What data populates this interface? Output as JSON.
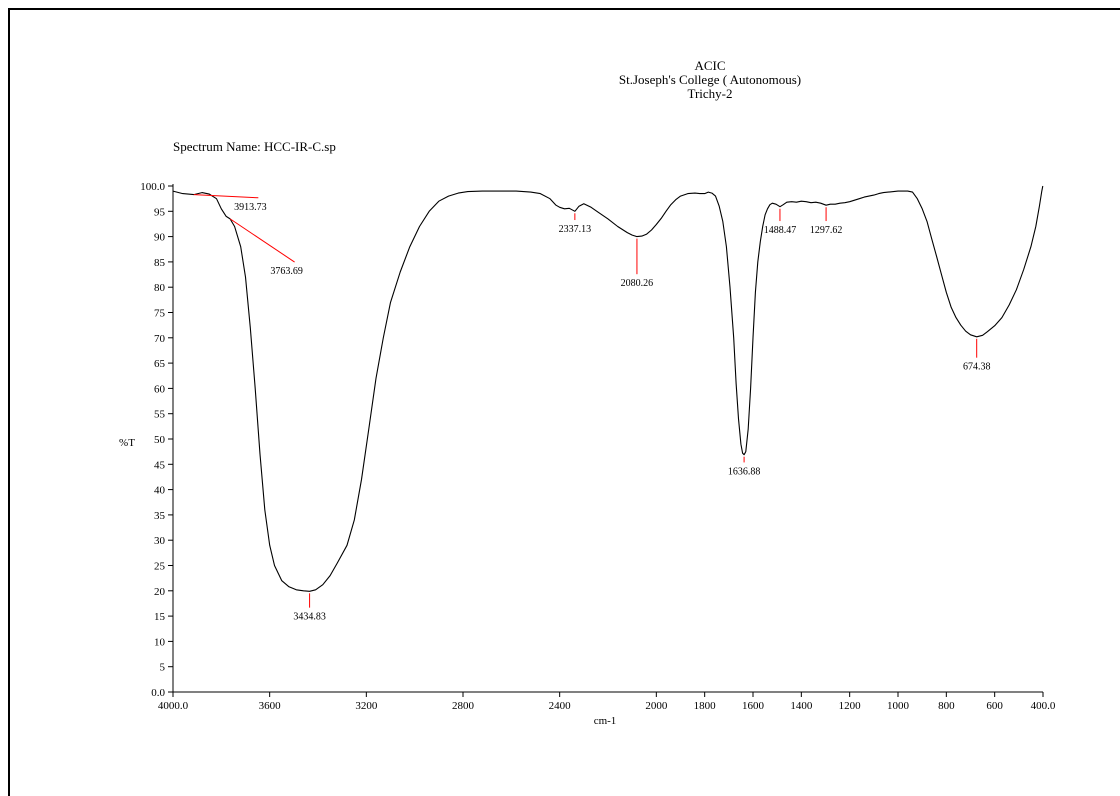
{
  "header": {
    "line1": "ACIC",
    "line2": "St.Joseph's College ( Autonomous)",
    "line3": "Trichy-2"
  },
  "spectrum_name": "Spectrum Name: HCC-IR-C.sp",
  "colors": {
    "trace": "#000000",
    "peak_marker": "#ff0000",
    "axis": "#000000"
  },
  "chart_data": {
    "type": "line",
    "title": "",
    "xlabel": "cm-1",
    "ylabel": "%T",
    "xlim": [
      4000,
      400
    ],
    "ylim": [
      0,
      100
    ],
    "x_reversed": true,
    "grid": false,
    "x_ticks": [
      4000,
      3600,
      3200,
      2800,
      2400,
      2000,
      1800,
      1600,
      1400,
      1200,
      1000,
      800,
      600,
      400
    ],
    "x_tick_labels": [
      "4000.0",
      "3600",
      "3200",
      "2800",
      "2400",
      "2000",
      "1800",
      "1600",
      "1400",
      "1200",
      "1000",
      "800",
      "600",
      "400.0"
    ],
    "y_ticks": [
      0,
      5,
      10,
      15,
      20,
      25,
      30,
      35,
      40,
      45,
      50,
      55,
      60,
      65,
      70,
      75,
      80,
      85,
      90,
      95,
      100
    ],
    "y_tick_labels": [
      "0.0",
      "5",
      "10",
      "15",
      "20",
      "25",
      "30",
      "35",
      "40",
      "45",
      "50",
      "55",
      "60",
      "65",
      "70",
      "75",
      "80",
      "85",
      "90",
      "95",
      "100.0"
    ],
    "series": [
      {
        "points": [
          [
            4000,
            99.0
          ],
          [
            3960,
            98.5
          ],
          [
            3913.73,
            98.3
          ],
          [
            3880,
            98.7
          ],
          [
            3850,
            98.4
          ],
          [
            3820,
            97.5
          ],
          [
            3800,
            95.5
          ],
          [
            3780,
            94.0
          ],
          [
            3763.69,
            93.5
          ],
          [
            3745,
            92.0
          ],
          [
            3720,
            88.0
          ],
          [
            3700,
            82.0
          ],
          [
            3680,
            72.0
          ],
          [
            3660,
            60.0
          ],
          [
            3640,
            47.0
          ],
          [
            3620,
            36.0
          ],
          [
            3600,
            29.0
          ],
          [
            3580,
            25.0
          ],
          [
            3550,
            22.0
          ],
          [
            3520,
            20.8
          ],
          [
            3490,
            20.2
          ],
          [
            3460,
            20.0
          ],
          [
            3434.83,
            19.9
          ],
          [
            3410,
            20.2
          ],
          [
            3380,
            21.2
          ],
          [
            3350,
            23.0
          ],
          [
            3320,
            25.5
          ],
          [
            3280,
            29.0
          ],
          [
            3250,
            34.0
          ],
          [
            3220,
            42.0
          ],
          [
            3190,
            52.0
          ],
          [
            3160,
            62.0
          ],
          [
            3130,
            70.0
          ],
          [
            3100,
            77.0
          ],
          [
            3060,
            83.0
          ],
          [
            3020,
            88.0
          ],
          [
            2980,
            92.0
          ],
          [
            2940,
            95.0
          ],
          [
            2900,
            97.0
          ],
          [
            2860,
            98.0
          ],
          [
            2820,
            98.6
          ],
          [
            2780,
            98.9
          ],
          [
            2720,
            99.0
          ],
          [
            2650,
            99.0
          ],
          [
            2580,
            99.0
          ],
          [
            2520,
            98.8
          ],
          [
            2480,
            98.5
          ],
          [
            2440,
            97.5
          ],
          [
            2415,
            96.2
          ],
          [
            2400,
            95.8
          ],
          [
            2380,
            95.5
          ],
          [
            2360,
            95.6
          ],
          [
            2337.13,
            95.0
          ],
          [
            2320,
            96.0
          ],
          [
            2300,
            96.5
          ],
          [
            2270,
            95.8
          ],
          [
            2240,
            94.8
          ],
          [
            2200,
            93.5
          ],
          [
            2160,
            92.0
          ],
          [
            2120,
            90.8
          ],
          [
            2100,
            90.3
          ],
          [
            2080.26,
            90.0
          ],
          [
            2060,
            90.1
          ],
          [
            2040,
            90.5
          ],
          [
            2020,
            91.3
          ],
          [
            2000,
            92.4
          ],
          [
            1980,
            93.6
          ],
          [
            1960,
            95.0
          ],
          [
            1940,
            96.3
          ],
          [
            1920,
            97.3
          ],
          [
            1900,
            98.0
          ],
          [
            1870,
            98.5
          ],
          [
            1840,
            98.6
          ],
          [
            1820,
            98.5
          ],
          [
            1800,
            98.5
          ],
          [
            1785,
            98.8
          ],
          [
            1770,
            98.6
          ],
          [
            1755,
            98.0
          ],
          [
            1740,
            96.0
          ],
          [
            1725,
            93.0
          ],
          [
            1710,
            88.0
          ],
          [
            1695,
            80.0
          ],
          [
            1680,
            70.0
          ],
          [
            1670,
            61.0
          ],
          [
            1660,
            54.0
          ],
          [
            1650,
            49.0
          ],
          [
            1643,
            47.2
          ],
          [
            1636.88,
            46.9
          ],
          [
            1630,
            47.5
          ],
          [
            1620,
            52.0
          ],
          [
            1610,
            60.0
          ],
          [
            1600,
            70.0
          ],
          [
            1590,
            79.0
          ],
          [
            1580,
            85.0
          ],
          [
            1570,
            89.0
          ],
          [
            1560,
            92.0
          ],
          [
            1550,
            94.3
          ],
          [
            1540,
            95.5
          ],
          [
            1530,
            96.3
          ],
          [
            1520,
            96.6
          ],
          [
            1505,
            96.4
          ],
          [
            1488.47,
            95.9
          ],
          [
            1475,
            96.3
          ],
          [
            1460,
            96.8
          ],
          [
            1440,
            96.9
          ],
          [
            1420,
            96.8
          ],
          [
            1400,
            97.0
          ],
          [
            1380,
            96.9
          ],
          [
            1360,
            96.7
          ],
          [
            1340,
            96.8
          ],
          [
            1320,
            96.6
          ],
          [
            1297.62,
            96.2
          ],
          [
            1280,
            96.4
          ],
          [
            1260,
            96.4
          ],
          [
            1240,
            96.6
          ],
          [
            1220,
            96.7
          ],
          [
            1200,
            96.9
          ],
          [
            1180,
            97.2
          ],
          [
            1160,
            97.5
          ],
          [
            1140,
            97.8
          ],
          [
            1120,
            98.0
          ],
          [
            1100,
            98.2
          ],
          [
            1080,
            98.5
          ],
          [
            1060,
            98.7
          ],
          [
            1040,
            98.8
          ],
          [
            1000,
            99.0
          ],
          [
            960,
            99.0
          ],
          [
            940,
            98.8
          ],
          [
            920,
            97.5
          ],
          [
            900,
            95.5
          ],
          [
            880,
            93.0
          ],
          [
            860,
            89.5
          ],
          [
            840,
            86.0
          ],
          [
            820,
            82.5
          ],
          [
            800,
            79.0
          ],
          [
            780,
            76.0
          ],
          [
            760,
            74.0
          ],
          [
            740,
            72.5
          ],
          [
            720,
            71.3
          ],
          [
            700,
            70.6
          ],
          [
            674.38,
            70.2
          ],
          [
            650,
            70.5
          ],
          [
            630,
            71.2
          ],
          [
            600,
            72.4
          ],
          [
            570,
            74.0
          ],
          [
            540,
            76.5
          ],
          [
            510,
            79.5
          ],
          [
            480,
            83.5
          ],
          [
            450,
            88.0
          ],
          [
            430,
            92.0
          ],
          [
            415,
            96.0
          ],
          [
            405,
            99.0
          ],
          [
            401,
            100.0
          ]
        ]
      }
    ],
    "peaks": [
      {
        "label": "3913.73",
        "x": 3913.73,
        "y": 98.3,
        "label_x": 3680,
        "label_y": 95.3,
        "leader": "angled"
      },
      {
        "label": "3763.69",
        "x": 3763.69,
        "y": 93.5,
        "label_x": 3530,
        "label_y": 82.6,
        "leader": "angled"
      },
      {
        "label": "3434.83",
        "x": 3434.83,
        "y": 19.9,
        "label_x": 3434.83,
        "label_y": 14.3,
        "leader": "vertical"
      },
      {
        "label": "2337.13",
        "x": 2337.13,
        "y": 95.0,
        "label_x": 2337.13,
        "label_y": 90.9,
        "leader": "vertical"
      },
      {
        "label": "2080.26",
        "x": 2080.26,
        "y": 90.0,
        "label_x": 2080.26,
        "label_y": 80.2,
        "leader": "vertical"
      },
      {
        "label": "1636.88",
        "x": 1636.88,
        "y": 46.9,
        "label_x": 1636.88,
        "label_y": 43.0,
        "leader": "vertical"
      },
      {
        "label": "1488.47",
        "x": 1488.47,
        "y": 95.9,
        "label_x": 1488.47,
        "label_y": 90.7,
        "leader": "vertical"
      },
      {
        "label": "1297.62",
        "x": 1297.62,
        "y": 96.2,
        "label_x": 1297.62,
        "label_y": 90.7,
        "leader": "vertical"
      },
      {
        "label": "674.38",
        "x": 674.38,
        "y": 70.2,
        "label_x": 674.38,
        "label_y": 63.7,
        "leader": "vertical"
      }
    ]
  }
}
